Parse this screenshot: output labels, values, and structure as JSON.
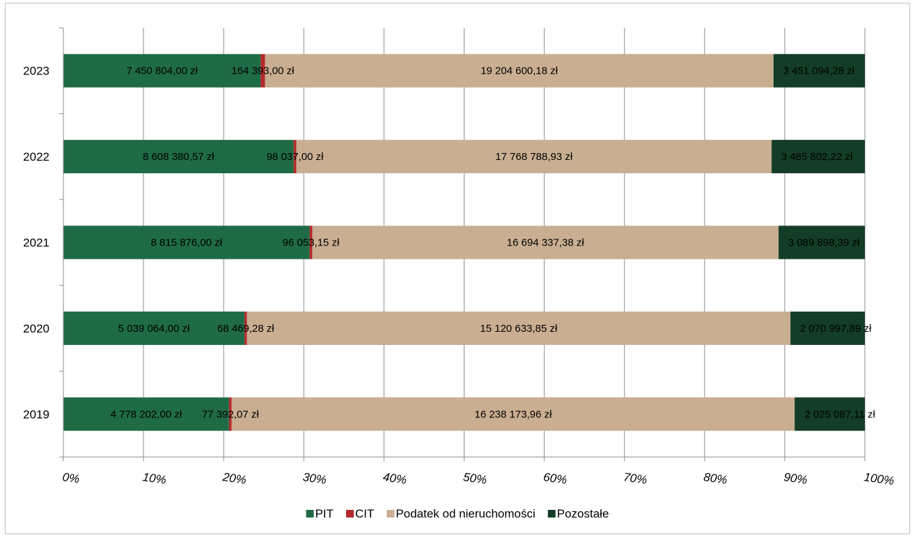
{
  "chart_data": {
    "type": "bar",
    "orientation": "horizontal",
    "stacked": "percent",
    "categories": [
      "2023",
      "2022",
      "2021",
      "2020",
      "2019"
    ],
    "series": [
      {
        "name": "PIT",
        "color": "#1f6b45",
        "values": [
          7450804.0,
          8608380.57,
          8815876.0,
          5039064.0,
          4778202.0
        ],
        "labels": [
          "7 450 804,00 zł",
          "8 608 380,57 zł",
          "8 815 876,00 zł",
          "5 039 064,00 zł",
          "4 778 202,00 zł"
        ]
      },
      {
        "name": "CIT",
        "color": "#b32a2a",
        "values": [
          164393.0,
          98037.0,
          96053.15,
          68469.28,
          77392.07
        ],
        "labels": [
          "164 393,00 zł",
          "98 037,00 zł",
          "96 053,15 zł",
          "68 469,28 zł",
          "77 392,07 zł"
        ]
      },
      {
        "name": "Podatek od nieruchomości",
        "color": "#c9ae92",
        "values": [
          19204600.18,
          17768788.93,
          16694337.38,
          15120633.85,
          16238173.96
        ],
        "labels": [
          "19 204 600,18 zł",
          "17 768 788,93 zł",
          "16 694 337,38 zł",
          "15 120 633,85 zł",
          "16 238 173,96 zł"
        ]
      },
      {
        "name": "Pozostałe",
        "color": "#143d27",
        "values": [
          3451094.28,
          3485802.22,
          3089898.39,
          2070997.89,
          2025087.11
        ],
        "labels": [
          "3 451 094,28 zł",
          "3 485 802,22 zł",
          "3 089 898,39 zł",
          "2 070 997,89 zł",
          "2 025 087,11 zł"
        ]
      }
    ],
    "x_ticks": [
      "0%",
      "10%",
      "20%",
      "30%",
      "40%",
      "50%",
      "60%",
      "70%",
      "80%",
      "90%",
      "100%"
    ],
    "xlim": [
      0,
      100
    ],
    "grid": "vertical",
    "legend": "bottom",
    "title": "",
    "xlabel": "",
    "ylabel": ""
  }
}
